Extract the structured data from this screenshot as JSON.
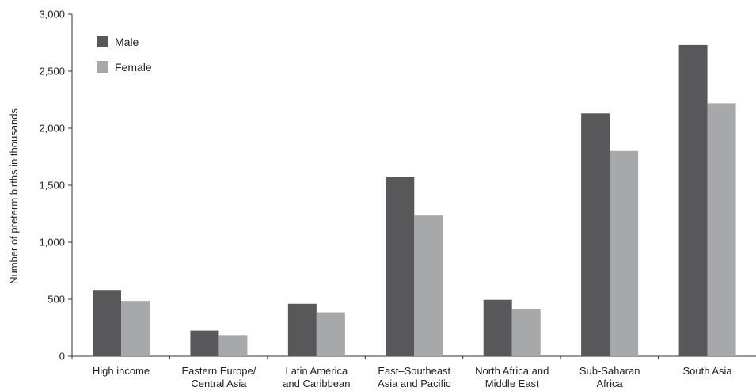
{
  "chart_data": {
    "type": "bar",
    "title": "",
    "xlabel": "",
    "ylabel": "Number of preterm births in thousands",
    "ylim": [
      0,
      3000
    ],
    "yticks": [
      0,
      500,
      1000,
      1500,
      2000,
      2500,
      3000
    ],
    "ytick_labels": [
      "0",
      "500",
      "1,000",
      "1,500",
      "2,000",
      "2,500",
      "3,000"
    ],
    "grid": false,
    "legend_position": "top-left",
    "categories": [
      [
        "High income"
      ],
      [
        "Eastern Europe/",
        "Central Asia"
      ],
      [
        "Latin America",
        "and Caribbean"
      ],
      [
        "East–Southeast",
        "Asia and Pacific"
      ],
      [
        "North Africa and",
        "Middle East"
      ],
      [
        "Sub-Saharan",
        "Africa"
      ],
      [
        "South Asia"
      ]
    ],
    "series": [
      {
        "name": "Male",
        "color": "#58585a",
        "values": [
          575,
          225,
          460,
          1570,
          495,
          2130,
          2730
        ]
      },
      {
        "name": "Female",
        "color": "#a7a8aa",
        "values": [
          485,
          185,
          385,
          1235,
          410,
          1800,
          2220
        ]
      }
    ]
  }
}
